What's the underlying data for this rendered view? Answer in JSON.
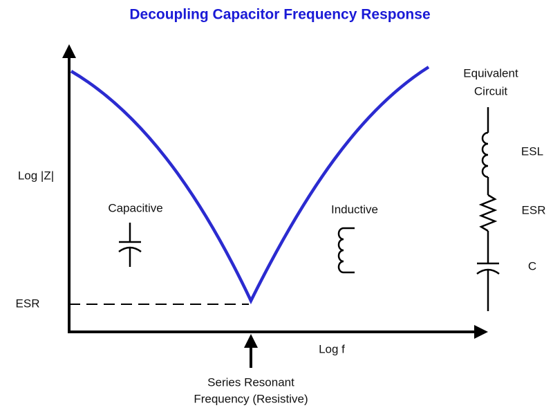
{
  "title": "Decoupling Capacitor Frequency Response",
  "axes": {
    "y_label": "Log |Z|",
    "x_label": "Log f",
    "esr_label": "ESR"
  },
  "regions": {
    "left": "Capacitive",
    "right": "Inductive"
  },
  "resonance": {
    "lines": [
      "Series Resonant",
      "Frequency (Resistive)"
    ]
  },
  "circuit": {
    "title_lines": [
      "Equivalent",
      "Circuit"
    ],
    "labels": [
      "ESL",
      "ESR",
      "C"
    ]
  }
}
